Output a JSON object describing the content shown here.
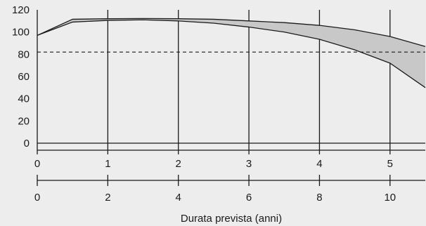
{
  "chart_data": {
    "type": "area",
    "xlabel": "Durata prevista (anni)",
    "primary_x_axis": {
      "range": [
        0,
        5.5
      ],
      "ticks": [
        0,
        1,
        2,
        3,
        4,
        5
      ]
    },
    "secondary_x_axis": {
      "range": [
        0,
        11
      ],
      "ticks": [
        0,
        2,
        4,
        6,
        8,
        10
      ]
    },
    "y_axis": {
      "range": [
        0,
        120
      ],
      "ticks": [
        0,
        20,
        40,
        60,
        80,
        100,
        120
      ]
    },
    "grid": "vertical lines at primary x ticks",
    "threshold": {
      "y": 82,
      "style": "dashed"
    },
    "series": [
      {
        "role": "upper",
        "x": [
          0,
          0.5,
          1,
          1.5,
          2,
          2.5,
          3,
          3.5,
          4,
          4.5,
          5,
          5.5
        ],
        "y": [
          97,
          111.5,
          112,
          112.2,
          112,
          111.5,
          110,
          108.5,
          106,
          102,
          96,
          87
        ]
      },
      {
        "role": "lower",
        "x": [
          0,
          0.5,
          1,
          1.5,
          2,
          2.5,
          3,
          3.5,
          4,
          4.5,
          5,
          5.5
        ],
        "y": [
          97,
          109,
          110.5,
          111,
          110,
          108,
          104.5,
          100,
          93.5,
          84,
          72,
          50
        ]
      }
    ],
    "colors": {
      "band": "#c8c8c8",
      "line": "#1a1a1a",
      "background": "#ededed"
    }
  }
}
